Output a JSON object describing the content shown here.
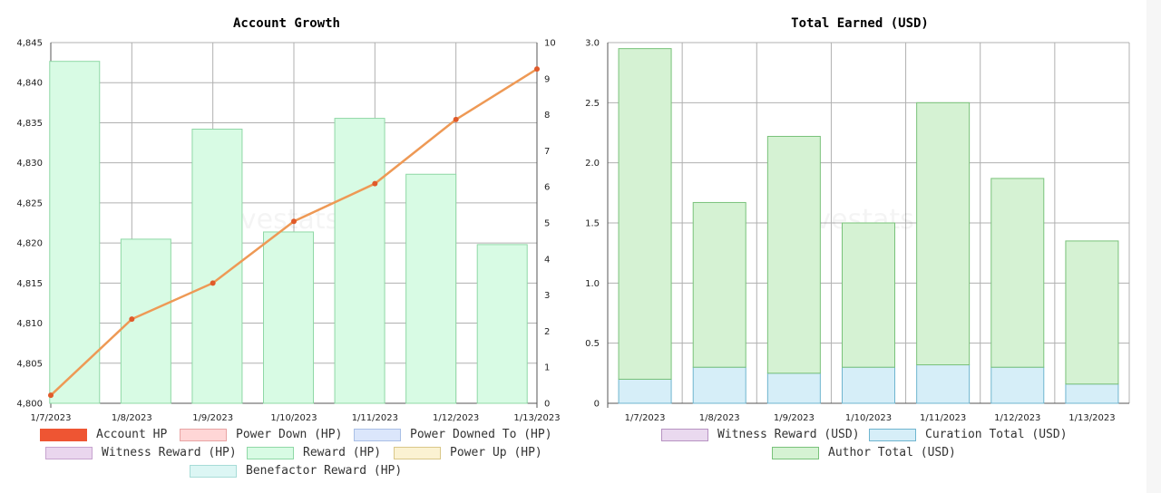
{
  "charts": [
    {
      "title": "Account Growth",
      "watermark": "hivestats.io",
      "legend": [
        {
          "label": "Account HP",
          "fill": "#ee5533",
          "border": "#ee5533"
        },
        {
          "label": "Power Down (HP)",
          "fill": "#ffd6d6",
          "border": "#e8a4a4"
        },
        {
          "label": "Power Downed To (HP)",
          "fill": "#dbe6fb",
          "border": "#a9bfe6"
        },
        {
          "label": "Witness Reward (HP)",
          "fill": "#ead6ee",
          "border": "#c7a4cf"
        },
        {
          "label": "Reward (HP)",
          "fill": "#d8fbe4",
          "border": "#8fd8a6"
        },
        {
          "label": "Power Up (HP)",
          "fill": "#fbf2d2",
          "border": "#d9c789"
        },
        {
          "label": "Benefactor Reward (HP)",
          "fill": "#dcf6f4",
          "border": "#a7dcd7"
        }
      ]
    },
    {
      "title": "Total Earned (USD)",
      "watermark": "hivestats.io",
      "legend": [
        {
          "label": "Witness Reward (USD)",
          "fill": "#ead9ef",
          "border": "#b792c2"
        },
        {
          "label": "Curation Total (USD)",
          "fill": "#d6eef8",
          "border": "#6fb5cf"
        },
        {
          "label": "Author Total (USD)",
          "fill": "#d5f2d3",
          "border": "#79c27a"
        }
      ]
    }
  ],
  "chart_data": [
    {
      "type": "bar",
      "title": "Account Growth",
      "categories": [
        "1/7/2023",
        "1/8/2023",
        "1/9/2023",
        "1/10/2023",
        "1/11/2023",
        "1/12/2023",
        "1/13/2023"
      ],
      "y_left": {
        "min": 4800,
        "max": 4845,
        "step": 5
      },
      "y_right": {
        "min": 0,
        "max": 10,
        "step": 1
      },
      "grid": true,
      "legend_position": "bottom",
      "series": [
        {
          "name": "Reward (HP)",
          "kind": "bar",
          "axis": "right",
          "color": "#d8fbe4",
          "stroke": "#8fd8a6",
          "values": [
            9.48,
            4.55,
            7.6,
            4.75,
            7.9,
            6.35,
            4.4
          ]
        },
        {
          "name": "Account HP",
          "kind": "line",
          "axis": "left",
          "color": "#ee9955",
          "point_color": "#e05a2a",
          "values": [
            4801.0,
            4810.5,
            4815.0,
            4822.7,
            4827.4,
            4835.4,
            4841.7
          ]
        }
      ]
    },
    {
      "type": "bar",
      "stacked": true,
      "title": "Total Earned (USD)",
      "categories": [
        "1/7/2023",
        "1/8/2023",
        "1/9/2023",
        "1/10/2023",
        "1/11/2023",
        "1/12/2023",
        "1/13/2023"
      ],
      "ylim": [
        0,
        3.0
      ],
      "y_step": 0.5,
      "grid": true,
      "legend_position": "bottom",
      "series": [
        {
          "name": "Curation Total (USD)",
          "color": "#d6eef8",
          "stroke": "#6fb5cf",
          "values": [
            0.2,
            0.3,
            0.25,
            0.3,
            0.32,
            0.3,
            0.16
          ]
        },
        {
          "name": "Author Total (USD)",
          "color": "#d5f2d3",
          "stroke": "#79c27a",
          "values": [
            2.75,
            1.37,
            1.97,
            1.2,
            2.18,
            1.57,
            1.19
          ]
        }
      ]
    }
  ]
}
